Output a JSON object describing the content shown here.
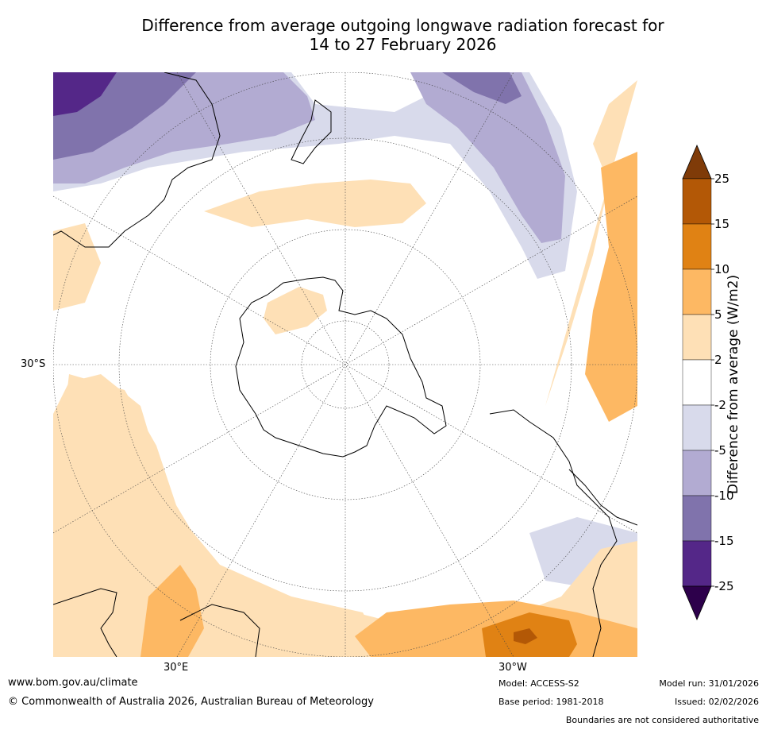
{
  "title": {
    "line1": "Difference from average outgoing longwave radiation forecast for",
    "line2": "14 to 27 February 2026"
  },
  "map": {
    "projection": "south polar stereographic",
    "lat_label": "30°S",
    "lon_labels": [
      "30°E",
      "30°W"
    ]
  },
  "colorbar": {
    "label": "Difference from average (W/m2)",
    "ticks": [
      "25",
      "15",
      "10",
      "5",
      "2",
      "-2",
      "-5",
      "-10",
      "-15",
      "-25"
    ],
    "bins": [
      {
        "range": "> 25",
        "color": "#7f3b08"
      },
      {
        "range": "15 to 25",
        "color": "#b35806"
      },
      {
        "range": "10 to 15",
        "color": "#e08214"
      },
      {
        "range": "5 to 10",
        "color": "#fdb863"
      },
      {
        "range": "2 to 5",
        "color": "#fee0b6"
      },
      {
        "range": "-2 to 2",
        "color": "#ffffff"
      },
      {
        "range": "-5 to -2",
        "color": "#d8daeb"
      },
      {
        "range": "-10 to -5",
        "color": "#b2abd2"
      },
      {
        "range": "-15 to -10",
        "color": "#8073ac"
      },
      {
        "range": "-25 to -15",
        "color": "#542788"
      },
      {
        "range": "< -25",
        "color": "#2d004b"
      }
    ]
  },
  "footer": {
    "website": "www.bom.gov.au/climate",
    "copyright": "© Commonwealth of Australia 2026, Australian Bureau of Meteorology",
    "model": "Model: ACCESS-S2",
    "base_period": "Base period: 1981-2018",
    "model_run": "Model run: 31/01/2026",
    "issued": "Issued: 02/02/2026",
    "disclaimer": "Boundaries are not considered authoritative"
  }
}
